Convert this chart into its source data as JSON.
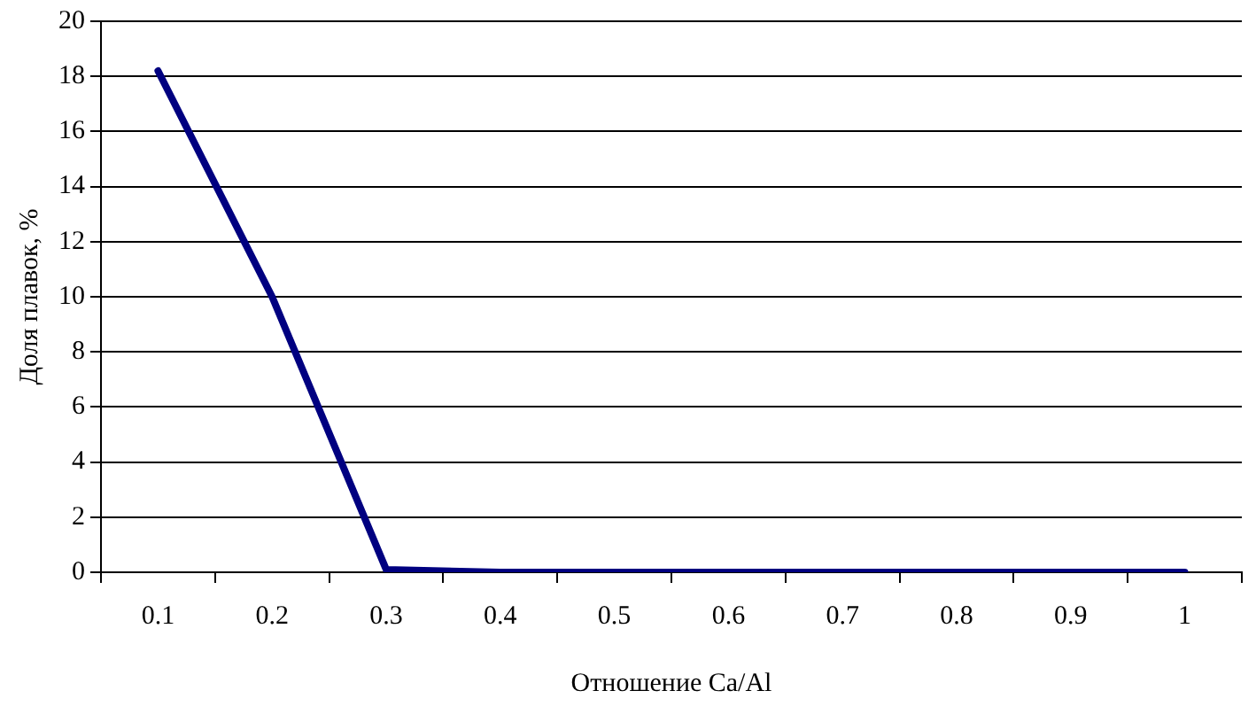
{
  "chart_data": {
    "type": "line",
    "xlabel": "Отношение Ca/Al",
    "ylabel": "Доля плавок, %",
    "categories": [
      "0.1",
      "0.2",
      "0.3",
      "0.4",
      "0.5",
      "0.6",
      "0.7",
      "0.8",
      "0.9",
      "1"
    ],
    "series": [
      {
        "color": "#000080",
        "values": [
          18.2,
          10,
          0.1,
          0,
          0,
          0,
          0,
          0,
          0,
          0
        ]
      }
    ],
    "ylim": [
      0,
      20
    ],
    "yticks": [
      0,
      2,
      4,
      6,
      8,
      10,
      12,
      14,
      16,
      18,
      20
    ],
    "grid": "y",
    "legend": false
  }
}
